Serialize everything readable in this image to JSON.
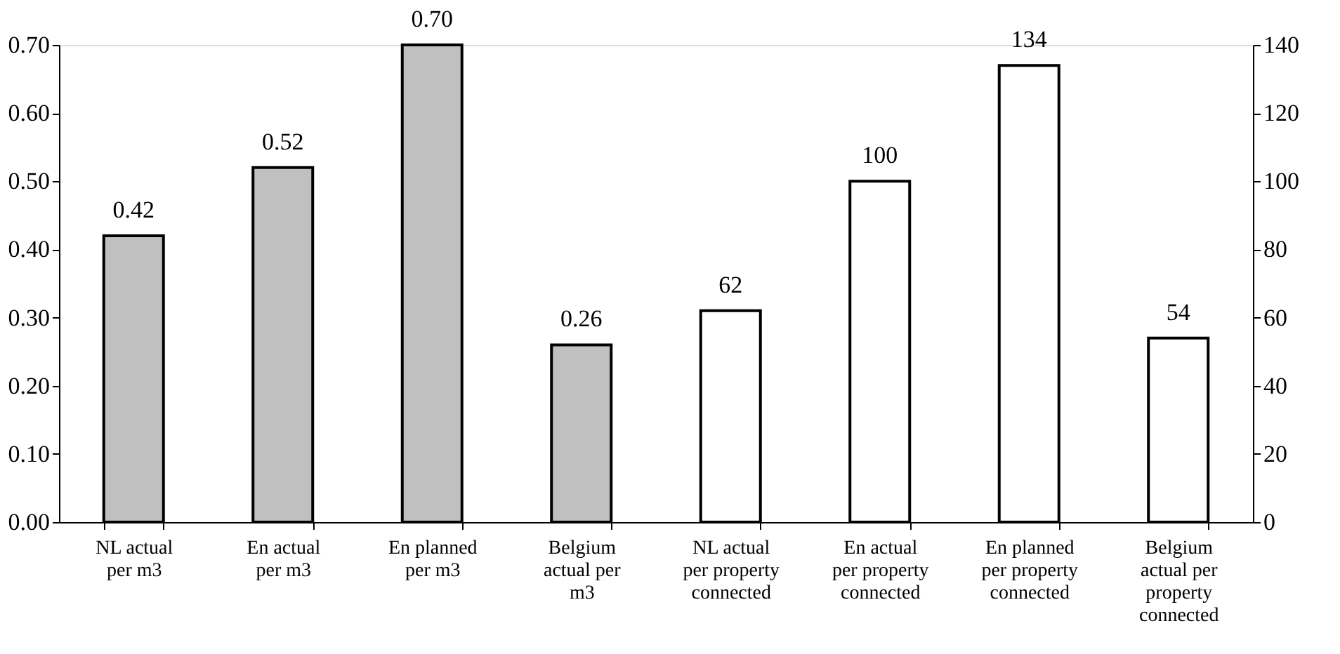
{
  "chart_data": {
    "type": "bar",
    "categories": [
      "NL actual per m3",
      "En actual per m3",
      "En planned per m3",
      "Belgium actual per m3",
      "NL actual per property connected",
      "En actual per property connected",
      "En planned per property connected",
      "Belgium actual per property connected"
    ],
    "series": [
      {
        "axis": "y",
        "color": "#c0c0c0",
        "values": [
          0.42,
          0.52,
          0.7,
          0.26,
          null,
          null,
          null,
          null
        ],
        "value_labels": [
          "0.42",
          "0.52",
          "0.70",
          "0.26",
          null,
          null,
          null,
          null
        ]
      },
      {
        "axis": "y2",
        "color": "#ffffff",
        "values": [
          null,
          null,
          null,
          null,
          62,
          100,
          134,
          54
        ],
        "value_labels": [
          null,
          null,
          null,
          null,
          "62",
          "100",
          "134",
          "54"
        ]
      }
    ],
    "ylim": [
      0,
      0.7
    ],
    "yticks": [
      {
        "value": 0,
        "label": "0.00"
      },
      {
        "value": 0.1,
        "label": "0.10"
      },
      {
        "value": 0.2,
        "label": "0.20"
      },
      {
        "value": 0.3,
        "label": "0.30"
      },
      {
        "value": 0.4,
        "label": "0.40"
      },
      {
        "value": 0.5,
        "label": "0.50"
      },
      {
        "value": 0.6,
        "label": "0.60"
      },
      {
        "value": 0.7,
        "label": "0.70"
      }
    ],
    "y2lim": [
      0,
      140
    ],
    "y2ticks": [
      0,
      20,
      40,
      60,
      80,
      100,
      120,
      140
    ],
    "grid": false,
    "legend": false
  }
}
